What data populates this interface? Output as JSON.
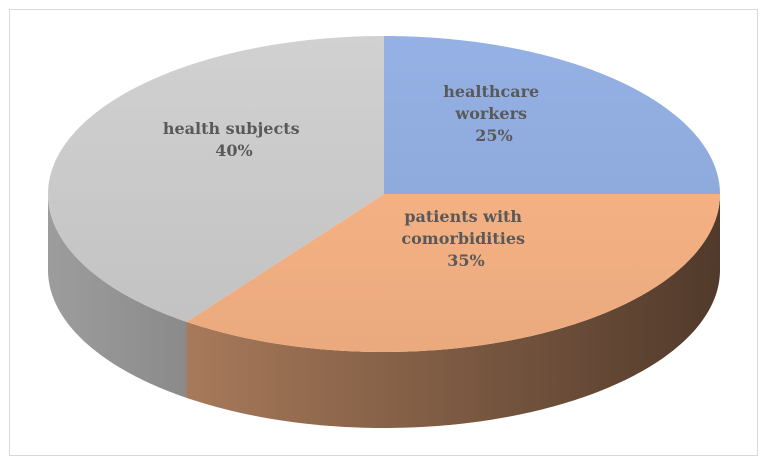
{
  "chart_data": {
    "type": "pie",
    "style": "3d",
    "slices": [
      {
        "label_lines": [
          "healthcare",
          "workers"
        ],
        "percent_label": "25%",
        "value": 25,
        "color": "#8faadc"
      },
      {
        "label_lines": [
          "patients with",
          "comorbidities"
        ],
        "percent_label": "35%",
        "value": 35,
        "color": "#f4b183"
      },
      {
        "label_lines": [
          "health subjects"
        ],
        "percent_label": "40%",
        "value": 40,
        "color": "#c9c9c9"
      }
    ],
    "start_direction": "top",
    "rotation": "clockwise",
    "legend": "none",
    "data_labels": "inside"
  }
}
